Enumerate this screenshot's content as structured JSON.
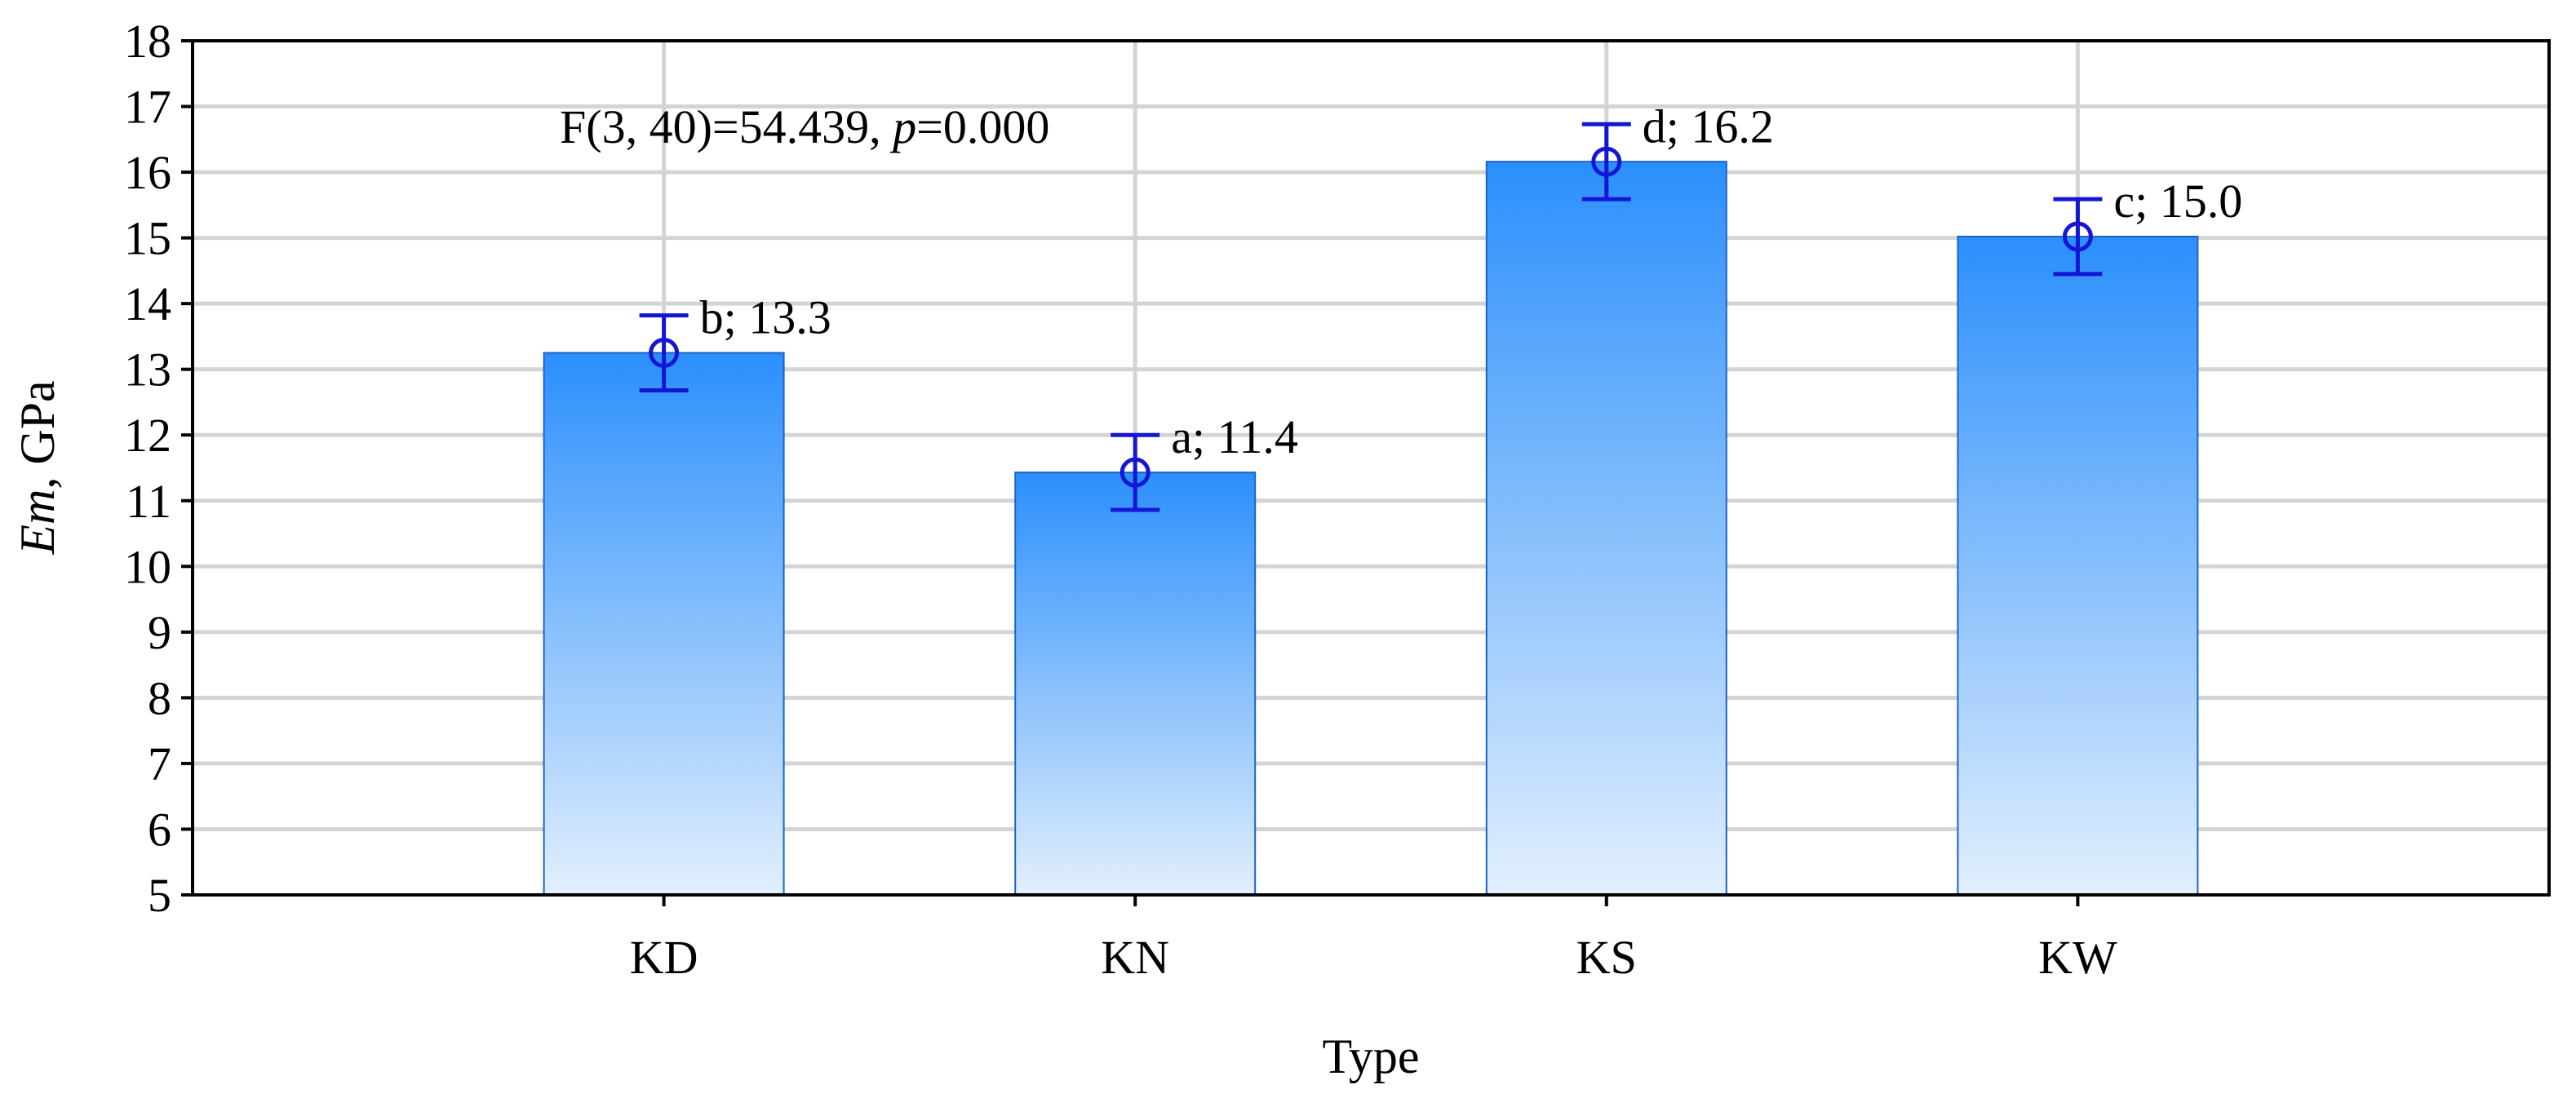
{
  "chart_data": {
    "type": "bar",
    "categories": [
      "KD",
      "KN",
      "KS",
      "KW"
    ],
    "values": [
      13.25,
      11.43,
      16.16,
      15.02
    ],
    "error_low": [
      12.68,
      10.86,
      15.59,
      14.45
    ],
    "error_high": [
      13.82,
      12.0,
      16.73,
      15.59
    ],
    "data_labels": [
      "b; 13.3",
      "a; 11.4",
      "d; 16.2",
      "c; 15.0"
    ],
    "annotation": {
      "prefix": "F(3, 40)=54.439, ",
      "p_symbol": "p",
      "suffix": "=0.000"
    },
    "xlabel": "Type",
    "ylabel": {
      "symbol": "Em",
      "unit": ", GPa"
    },
    "ylim": [
      5,
      18
    ],
    "yticks": [
      5,
      6,
      7,
      8,
      9,
      10,
      11,
      12,
      13,
      14,
      15,
      16,
      17,
      18
    ],
    "grid": true,
    "colors": {
      "bar_top": "#2b8ffc",
      "bar_bottom": "#e2effd",
      "bar_edge": "#1a63c9",
      "error_bar": "#1515d6",
      "grid": "#d4d4d4",
      "axis": "#000000"
    }
  }
}
